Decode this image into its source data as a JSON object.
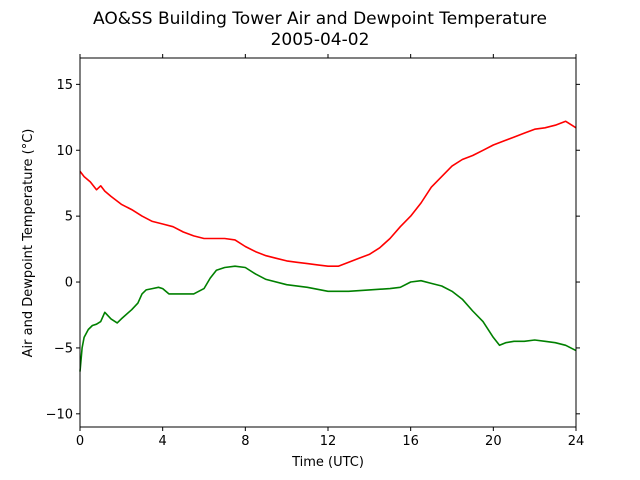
{
  "chart_data": {
    "type": "line",
    "title": "AO&SS Building Tower Air and Dewpoint Temperature",
    "subtitle": "2005-04-02",
    "xlabel": "Time (UTC)",
    "ylabel": "Air and Dewpoint Temperature (°C)",
    "xlim": [
      0,
      24
    ],
    "ylim": [
      -11,
      17
    ],
    "xticks": [
      0,
      4,
      8,
      12,
      16,
      20,
      24
    ],
    "xtick_labels": [
      "0",
      "4",
      "8",
      "12",
      "16",
      "20",
      "24"
    ],
    "yticks": [
      -10,
      -5,
      0,
      5,
      10,
      15
    ],
    "ytick_labels": [
      "−10",
      "−5",
      "0",
      "5",
      "10",
      "15"
    ],
    "grid": false,
    "series": [
      {
        "color": "#ff0000",
        "x": [
          0,
          0.2,
          0.5,
          0.8,
          1.0,
          1.2,
          1.5,
          2.0,
          2.5,
          3.0,
          3.5,
          4.0,
          4.5,
          5.0,
          5.5,
          6.0,
          6.5,
          7.0,
          7.5,
          8.0,
          8.5,
          9.0,
          9.5,
          10.0,
          10.5,
          11.0,
          11.5,
          12.0,
          12.5,
          13.0,
          13.5,
          14.0,
          14.5,
          15.0,
          15.5,
          16.0,
          16.5,
          17.0,
          17.5,
          18.0,
          18.5,
          19.0,
          19.5,
          20.0,
          20.5,
          21.0,
          21.5,
          22.0,
          22.5,
          23.0,
          23.5,
          24.0
        ],
        "y": [
          8.4,
          8.0,
          7.6,
          7.0,
          7.3,
          6.9,
          6.5,
          5.9,
          5.5,
          5.0,
          4.6,
          4.4,
          4.2,
          3.8,
          3.5,
          3.3,
          3.3,
          3.3,
          3.2,
          2.7,
          2.3,
          2.0,
          1.8,
          1.6,
          1.5,
          1.4,
          1.3,
          1.2,
          1.2,
          1.5,
          1.8,
          2.1,
          2.6,
          3.3,
          4.2,
          5.0,
          6.0,
          7.2,
          8.0,
          8.8,
          9.3,
          9.6,
          10.0,
          10.4,
          10.7,
          11.0,
          11.3,
          11.6,
          11.7,
          11.9,
          12.2,
          11.7
        ]
      },
      {
        "color": "#008000",
        "x": [
          0,
          0.1,
          0.2,
          0.4,
          0.6,
          0.8,
          1.0,
          1.2,
          1.5,
          1.8,
          2.0,
          2.5,
          2.8,
          3.0,
          3.2,
          3.5,
          3.8,
          4.0,
          4.3,
          4.5,
          5.0,
          5.5,
          6.0,
          6.3,
          6.6,
          7.0,
          7.5,
          8.0,
          8.5,
          9.0,
          10.0,
          11.0,
          12.0,
          13.0,
          14.0,
          15.0,
          15.5,
          16.0,
          16.5,
          17.0,
          17.5,
          18.0,
          18.5,
          19.0,
          19.5,
          20.0,
          20.3,
          20.6,
          21.0,
          21.5,
          22.0,
          22.5,
          23.0,
          23.5,
          24.0
        ],
        "y": [
          -6.8,
          -5.0,
          -4.2,
          -3.6,
          -3.3,
          -3.2,
          -3.0,
          -2.3,
          -2.8,
          -3.1,
          -2.8,
          -2.1,
          -1.6,
          -0.9,
          -0.6,
          -0.5,
          -0.4,
          -0.5,
          -0.9,
          -0.9,
          -0.9,
          -0.9,
          -0.5,
          0.3,
          0.9,
          1.1,
          1.2,
          1.1,
          0.6,
          0.2,
          -0.2,
          -0.4,
          -0.7,
          -0.7,
          -0.6,
          -0.5,
          -0.4,
          0.0,
          0.1,
          -0.1,
          -0.3,
          -0.7,
          -1.3,
          -2.2,
          -3.0,
          -4.2,
          -4.8,
          -4.6,
          -4.5,
          -4.5,
          -4.4,
          -4.5,
          -4.6,
          -4.8,
          -5.2
        ]
      }
    ]
  }
}
